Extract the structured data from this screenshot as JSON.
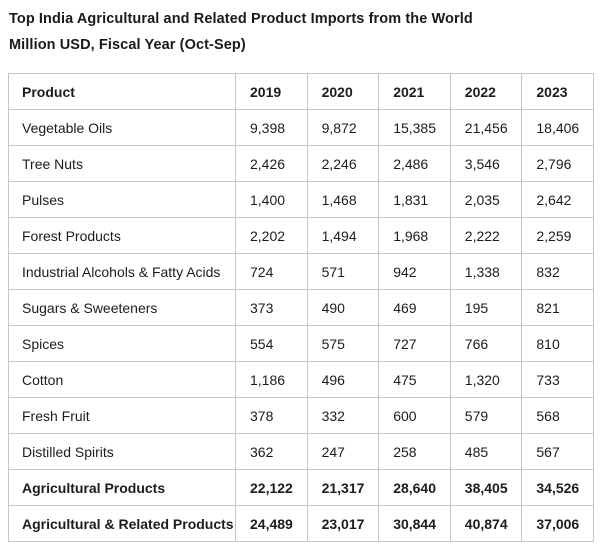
{
  "header": {
    "title": "Top India Agricultural and Related Product Imports from the World",
    "subtitle": "Million USD, Fiscal Year (Oct-Sep)"
  },
  "table": {
    "columns": [
      "Product",
      "2019",
      "2020",
      "2021",
      "2022",
      "2023"
    ],
    "rows": [
      {
        "product": "Vegetable Oils",
        "values": [
          "9,398",
          "9,872",
          "15,385",
          "21,456",
          "18,406"
        ],
        "is_total": false
      },
      {
        "product": "Tree Nuts",
        "values": [
          "2,426",
          "2,246",
          "2,486",
          "3,546",
          "2,796"
        ],
        "is_total": false
      },
      {
        "product": "Pulses",
        "values": [
          "1,400",
          "1,468",
          "1,831",
          "2,035",
          "2,642"
        ],
        "is_total": false
      },
      {
        "product": "Forest Products",
        "values": [
          "2,202",
          "1,494",
          "1,968",
          "2,222",
          "2,259"
        ],
        "is_total": false
      },
      {
        "product": "Industrial Alcohols & Fatty Acids",
        "values": [
          "724",
          "571",
          "942",
          "1,338",
          "832"
        ],
        "is_total": false
      },
      {
        "product": "Sugars & Sweeteners",
        "values": [
          "373",
          "490",
          "469",
          "195",
          "821"
        ],
        "is_total": false
      },
      {
        "product": "Spices",
        "values": [
          "554",
          "575",
          "727",
          "766",
          "810"
        ],
        "is_total": false
      },
      {
        "product": "Cotton",
        "values": [
          "1,186",
          "496",
          "475",
          "1,320",
          "733"
        ],
        "is_total": false
      },
      {
        "product": "Fresh Fruit",
        "values": [
          "378",
          "332",
          "600",
          "579",
          "568"
        ],
        "is_total": false
      },
      {
        "product": "Distilled Spirits",
        "values": [
          "362",
          "247",
          "258",
          "485",
          "567"
        ],
        "is_total": false
      },
      {
        "product": "Agricultural Products",
        "values": [
          "22,122",
          "21,317",
          "28,640",
          "38,405",
          "34,526"
        ],
        "is_total": true
      },
      {
        "product": "Agricultural & Related Products",
        "values": [
          "24,489",
          "23,017",
          "30,844",
          "40,874",
          "37,006"
        ],
        "is_total": true
      }
    ]
  },
  "chart_data": {
    "type": "table",
    "title": "Top India Agricultural and Related Product Imports from the World",
    "subtitle": "Million USD, Fiscal Year (Oct-Sep)",
    "columns": [
      "Product",
      "2019",
      "2020",
      "2021",
      "2022",
      "2023"
    ],
    "rows": [
      [
        "Vegetable Oils",
        9398,
        9872,
        15385,
        21456,
        18406
      ],
      [
        "Tree Nuts",
        2426,
        2246,
        2486,
        3546,
        2796
      ],
      [
        "Pulses",
        1400,
        1468,
        1831,
        2035,
        2642
      ],
      [
        "Forest Products",
        2202,
        1494,
        1968,
        2222,
        2259
      ],
      [
        "Industrial Alcohols & Fatty Acids",
        724,
        571,
        942,
        1338,
        832
      ],
      [
        "Sugars & Sweeteners",
        373,
        490,
        469,
        195,
        821
      ],
      [
        "Spices",
        554,
        575,
        727,
        766,
        810
      ],
      [
        "Cotton",
        1186,
        496,
        475,
        1320,
        733
      ],
      [
        "Fresh Fruit",
        378,
        332,
        600,
        579,
        568
      ],
      [
        "Distilled Spirits",
        362,
        247,
        258,
        485,
        567
      ],
      [
        "Agricultural Products",
        22122,
        21317,
        28640,
        38405,
        34526
      ],
      [
        "Agricultural & Related Products",
        24489,
        23017,
        30844,
        40874,
        37006
      ]
    ],
    "units": "Million USD",
    "notes": "Rows 'Agricultural Products' and 'Agricultural & Related Products' are bold total rows"
  },
  "style": {
    "border_color": "#c6c6c6",
    "text_color": "#1c1c1c",
    "background_color": "#ffffff"
  }
}
